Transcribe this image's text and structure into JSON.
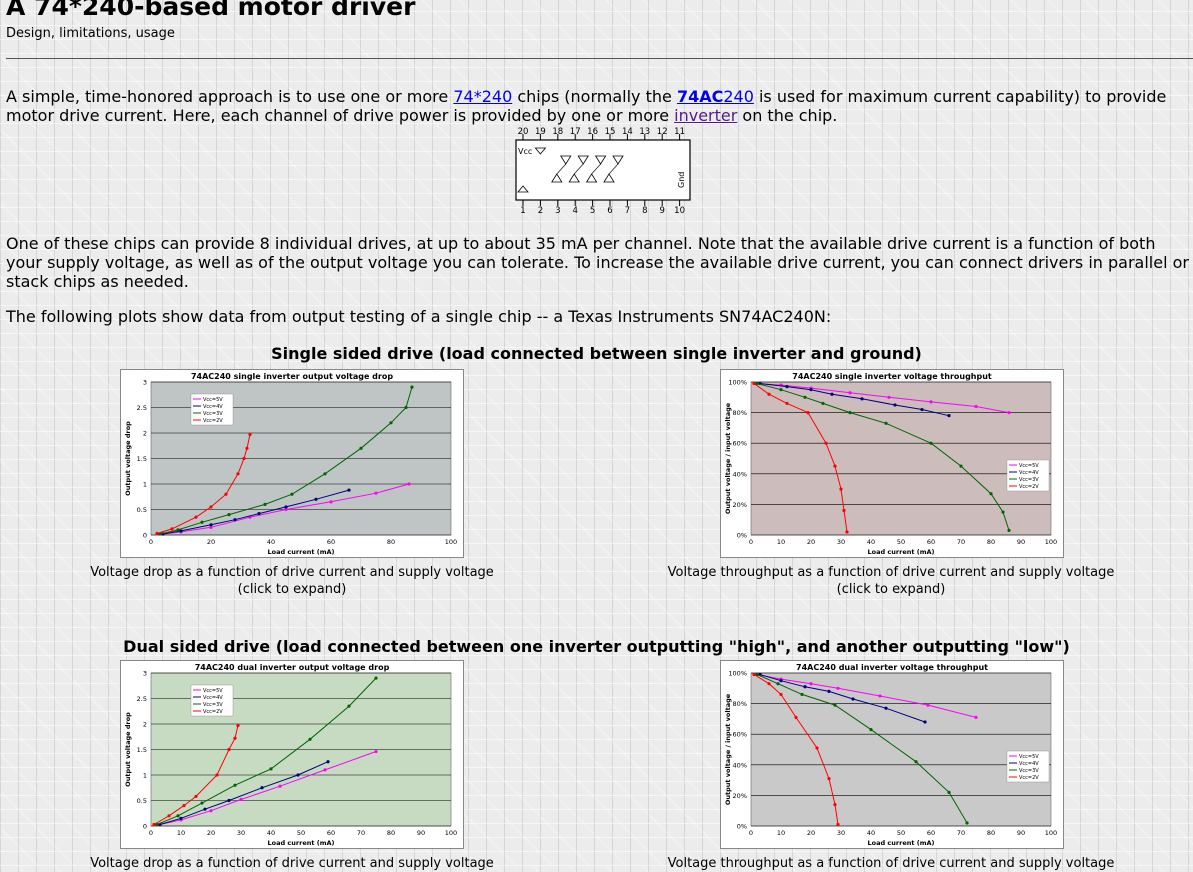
{
  "page": {
    "title": "A 74*240-based motor driver",
    "subtitle": "Design, limitations, usage"
  },
  "intro": {
    "t1": "A simple, time-honored approach is to use one or more ",
    "link1": "74*240",
    "t2": " chips (normally the ",
    "link2_bold_a": "74",
    "link2_bold_b": "AC",
    "link2_c": "240",
    "t3": " is used for maximum current capability) to provide motor drive current. Here, each channel of drive power is provided by one or more ",
    "link3": "inverter",
    "t4": " on the chip."
  },
  "chip": {
    "top_pins": [
      "20",
      "19",
      "18",
      "17",
      "16",
      "15",
      "14",
      "13",
      "12",
      "11"
    ],
    "bottom_pins": [
      "1",
      "2",
      "3",
      "4",
      "5",
      "6",
      "7",
      "8",
      "9",
      "10"
    ],
    "vcc_label": "Vcc",
    "gnd_label": "Gnd"
  },
  "para2": "One of these chips can provide 8 individual drives, at up to about 35 mA per channel. Note that the available drive current is a function of both your supply voltage, as well as of the output voltage you can tolerate. To increase the available drive current, you can connect drivers in parallel or stack chips as needed.",
  "para3": "The following plots show data from output testing of a single chip -- a Texas Instruments SN74AC240N:",
  "section1": {
    "heading": "Single sided drive (load connected between single inverter and ground)",
    "caption_left_1": "Voltage drop as a function of drive current and supply voltage",
    "caption_left_2": "(click to expand)",
    "caption_right_1": "Voltage throughput as a function of drive current and supply voltage",
    "caption_right_2": "(click to expand)"
  },
  "section2": {
    "heading": "Dual sided drive (load connected between one inverter outputting \"high\", and another outputting \"low\")",
    "caption_left_1": "Voltage drop as a function of drive current and supply voltage",
    "caption_right_1": "Voltage throughput as a function of drive current and supply voltage"
  },
  "chart_data": [
    {
      "type": "line",
      "title": "74AC240 single inverter output voltage drop",
      "xlabel": "Load current (mA)",
      "ylabel": "Output voltage drop",
      "xlim": [
        0,
        100
      ],
      "ylim": [
        0,
        3
      ],
      "xticks": [
        "0",
        "20",
        "40",
        "60",
        "80",
        "100"
      ],
      "yticks": [
        "0",
        "0.5",
        "1",
        "1.5",
        "2",
        "2.5",
        "3"
      ],
      "legend_position": "top-left",
      "grid": true,
      "plot_bg": "#bfc5c5",
      "series": [
        {
          "name": "Vcc=5V",
          "color": "#ff00ff",
          "x": [
            4,
            10,
            20,
            33,
            45,
            60,
            75,
            86
          ],
          "y": [
            0.02,
            0.06,
            0.15,
            0.35,
            0.5,
            0.65,
            0.82,
            1.0
          ]
        },
        {
          "name": "Vcc=4V",
          "color": "#000080",
          "x": [
            4,
            10,
            20,
            28,
            36,
            45,
            55,
            66
          ],
          "y": [
            0.02,
            0.08,
            0.2,
            0.3,
            0.42,
            0.55,
            0.7,
            0.88
          ]
        },
        {
          "name": "Vcc=3V",
          "color": "#006400",
          "x": [
            3,
            9,
            17,
            26,
            38,
            47,
            58,
            70,
            80,
            85,
            87
          ],
          "y": [
            0.02,
            0.1,
            0.25,
            0.4,
            0.6,
            0.8,
            1.2,
            1.7,
            2.2,
            2.5,
            2.9
          ]
        },
        {
          "name": "Vcc=2V",
          "color": "#ff0000",
          "x": [
            2,
            7,
            15,
            20,
            25,
            29,
            31,
            32,
            33
          ],
          "y": [
            0.03,
            0.12,
            0.35,
            0.55,
            0.8,
            1.2,
            1.5,
            1.7,
            1.97
          ]
        }
      ]
    },
    {
      "type": "line",
      "title": "74AC240 single inverter voltage throughput",
      "xlabel": "Load current (mA)",
      "ylabel": "Output voltage / input voltage",
      "xlim": [
        0,
        100
      ],
      "ylim": [
        0,
        100
      ],
      "xticks": [
        "0",
        "10",
        "20",
        "30",
        "40",
        "50",
        "60",
        "70",
        "80",
        "90",
        "100"
      ],
      "yticks": [
        "0%",
        "20%",
        "40%",
        "60%",
        "80%",
        "100%"
      ],
      "legend_position": "right",
      "grid": true,
      "plot_bg": "#cdbcbc",
      "series": [
        {
          "name": "Vcc=5V",
          "color": "#ff00ff",
          "x": [
            2,
            10,
            20,
            33,
            46,
            60,
            75,
            86
          ],
          "y": [
            99,
            98,
            96,
            93,
            90,
            87,
            84,
            80
          ]
        },
        {
          "name": "Vcc=4V",
          "color": "#000080",
          "x": [
            3,
            12,
            20,
            27,
            37,
            48,
            57,
            66
          ],
          "y": [
            99,
            97,
            95,
            92,
            89,
            85,
            82,
            78
          ]
        },
        {
          "name": "Vcc=3V",
          "color": "#006400",
          "x": [
            2,
            10,
            18,
            24,
            33,
            45,
            60,
            70,
            80,
            84,
            86
          ],
          "y": [
            99,
            95,
            90,
            86,
            80,
            73,
            60,
            45,
            27,
            15,
            3
          ]
        },
        {
          "name": "Vcc=2V",
          "color": "#ff0000",
          "x": [
            1,
            6,
            12,
            19,
            25,
            28,
            30,
            31,
            32
          ],
          "y": [
            99,
            92,
            86,
            80,
            60,
            45,
            30,
            16,
            2
          ]
        }
      ]
    },
    {
      "type": "line",
      "title": "74AC240 dual inverter output voltage drop",
      "xlabel": "Load current (mA)",
      "ylabel": "Output voltage drop",
      "xlim": [
        0,
        100
      ],
      "ylim": [
        0,
        3
      ],
      "xticks": [
        "0",
        "10",
        "20",
        "30",
        "40",
        "50",
        "60",
        "70",
        "80",
        "90",
        "100"
      ],
      "yticks": [
        "0",
        "0.5",
        "1",
        "1.5",
        "2",
        "2.5",
        "3"
      ],
      "legend_position": "top-left",
      "grid": true,
      "plot_bg": "#c7dbc3",
      "series": [
        {
          "name": "Vcc=5V",
          "color": "#ff00ff",
          "x": [
            3,
            10,
            20,
            30,
            43,
            58,
            75
          ],
          "y": [
            0.03,
            0.12,
            0.3,
            0.52,
            0.78,
            1.1,
            1.46
          ]
        },
        {
          "name": "Vcc=4V",
          "color": "#000080",
          "x": [
            3,
            10,
            18,
            26,
            37,
            49,
            59
          ],
          "y": [
            0.03,
            0.15,
            0.33,
            0.5,
            0.75,
            1.0,
            1.26
          ]
        },
        {
          "name": "Vcc=3V",
          "color": "#006400",
          "x": [
            2,
            9,
            17,
            28,
            40,
            53,
            66,
            75
          ],
          "y": [
            0.03,
            0.2,
            0.45,
            0.8,
            1.12,
            1.7,
            2.35,
            2.9
          ]
        },
        {
          "name": "Vcc=2V",
          "color": "#ff0000",
          "x": [
            1,
            6,
            11,
            15,
            22,
            26,
            28,
            29
          ],
          "y": [
            0.03,
            0.2,
            0.4,
            0.58,
            1.0,
            1.5,
            1.72,
            1.97
          ]
        }
      ]
    },
    {
      "type": "line",
      "title": "74AC240 dual inverter voltage throughput",
      "xlabel": "Load current (mA)",
      "ylabel": "Output voltage / input voltage",
      "xlim": [
        0,
        100
      ],
      "ylim": [
        0,
        100
      ],
      "xticks": [
        "0",
        "10",
        "20",
        "30",
        "40",
        "50",
        "60",
        "70",
        "80",
        "90",
        "100"
      ],
      "yticks": [
        "0%",
        "20%",
        "40%",
        "60%",
        "80%",
        "100%"
      ],
      "legend_position": "right",
      "grid": true,
      "plot_bg": "#c9c9c9",
      "series": [
        {
          "name": "Vcc=5V",
          "color": "#ff00ff",
          "x": [
            2,
            10,
            20,
            29,
            43,
            59,
            75
          ],
          "y": [
            99,
            96,
            93,
            90,
            85,
            79,
            71
          ]
        },
        {
          "name": "Vcc=4V",
          "color": "#000080",
          "x": [
            3,
            10,
            18,
            26,
            34,
            45,
            58
          ],
          "y": [
            99,
            95,
            91,
            88,
            83,
            77,
            68
          ]
        },
        {
          "name": "Vcc=3V",
          "color": "#006400",
          "x": [
            2,
            9,
            17,
            28,
            40,
            55,
            66,
            72
          ],
          "y": [
            99,
            93,
            86,
            79,
            63,
            42,
            22,
            2
          ]
        },
        {
          "name": "Vcc=2V",
          "color": "#ff0000",
          "x": [
            1,
            6,
            10,
            15,
            22,
            26,
            28,
            29
          ],
          "y": [
            99,
            93,
            86,
            71,
            51,
            31,
            14,
            1
          ]
        }
      ]
    }
  ]
}
